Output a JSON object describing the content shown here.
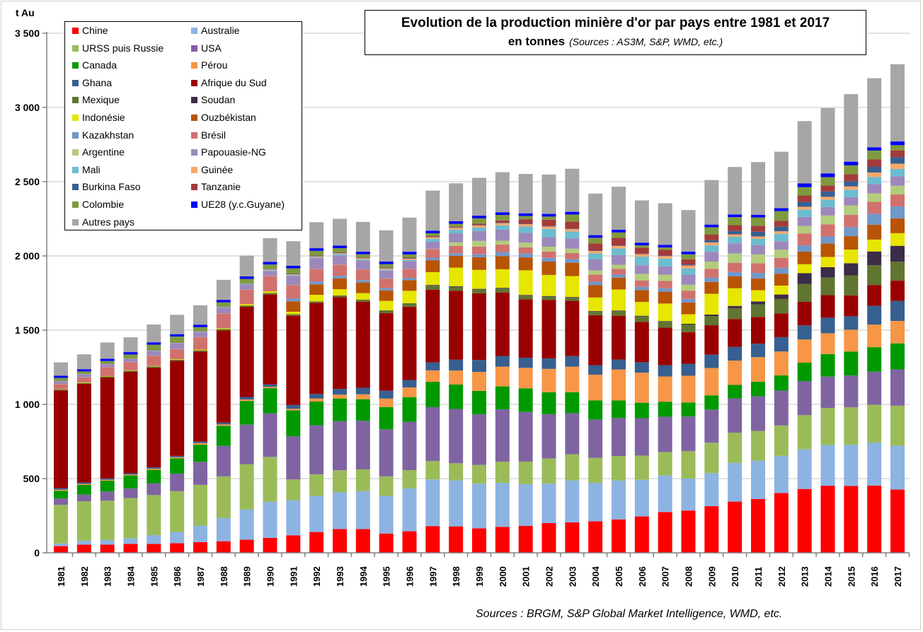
{
  "chart_data": {
    "type": "bar",
    "stacked": true,
    "title": "Evolution de la production minière d'or par pays entre 1981 et 2017",
    "subtitle_bold": "en tonnes",
    "subtitle_sources": "(Sources : AS3M, S&P, WMD, etc.)",
    "ylabel": "t Au",
    "ylim": [
      0,
      3500
    ],
    "yticks": [
      0,
      500,
      1000,
      1500,
      2000,
      2500,
      3000,
      3500
    ],
    "ytick_labels": [
      "0",
      "500",
      "1 000",
      "1 500",
      "2 000",
      "2 500",
      "3 000",
      "3 500"
    ],
    "grid": true,
    "legend_position": "top-left",
    "categories": [
      "1981",
      "1982",
      "1983",
      "1984",
      "1985",
      "1986",
      "1987",
      "1988",
      "1989",
      "1990",
      "1991",
      "1992",
      "1993",
      "1994",
      "1995",
      "1996",
      "1997",
      "1998",
      "1999",
      "2000",
      "2001",
      "2002",
      "2003",
      "2004",
      "2005",
      "2006",
      "2007",
      "2008",
      "2009",
      "2010",
      "2011",
      "2012",
      "2013",
      "2014",
      "2015",
      "2016",
      "2017"
    ],
    "series": [
      {
        "name": "Chine",
        "color": "#ff0000",
        "values": [
          45,
          55,
          55,
          60,
          60,
          65,
          72,
          78,
          88,
          100,
          118,
          140,
          160,
          160,
          130,
          145,
          180,
          178,
          165,
          175,
          182,
          200,
          205,
          212,
          225,
          245,
          275,
          285,
          314,
          345,
          362,
          403,
          430,
          452,
          450,
          453,
          426
        ]
      },
      {
        "name": "Australie",
        "color": "#8db3e2",
        "values": [
          18,
          27,
          31,
          39,
          59,
          75,
          111,
          157,
          204,
          244,
          236,
          243,
          247,
          256,
          253,
          289,
          314,
          310,
          301,
          296,
          280,
          266,
          283,
          259,
          262,
          247,
          246,
          215,
          223,
          261,
          259,
          250,
          267,
          274,
          278,
          290,
          295
        ]
      },
      {
        "name": "URSS puis Russie",
        "color": "#9bbb59",
        "values": [
          260,
          265,
          265,
          270,
          270,
          275,
          275,
          280,
          305,
          302,
          140,
          146,
          149,
          146,
          132,
          123,
          125,
          115,
          126,
          143,
          152,
          170,
          176,
          169,
          165,
          163,
          158,
          185,
          205,
          203,
          200,
          205,
          230,
          250,
          252,
          255,
          270
        ]
      },
      {
        "name": "USA",
        "color": "#8064a2",
        "values": [
          43,
          45,
          62,
          65,
          80,
          118,
          155,
          205,
          266,
          294,
          290,
          330,
          331,
          327,
          317,
          326,
          362,
          366,
          341,
          353,
          335,
          298,
          277,
          258,
          256,
          252,
          238,
          233,
          223,
          231,
          234,
          235,
          230,
          211,
          214,
          222,
          245
        ]
      },
      {
        "name": "Canada",
        "color": "#009900",
        "values": [
          52,
          65,
          73,
          87,
          90,
          103,
          116,
          135,
          160,
          169,
          176,
          160,
          153,
          146,
          150,
          166,
          171,
          165,
          158,
          154,
          159,
          148,
          141,
          129,
          119,
          104,
          101,
          95,
          96,
          91,
          97,
          102,
          124,
          152,
          162,
          165,
          175
        ]
      },
      {
        "name": "Pérou",
        "color": "#f79646",
        "values": [
          7,
          7,
          6,
          6,
          8,
          8,
          10,
          10,
          10,
          9,
          10,
          20,
          25,
          33,
          57,
          65,
          77,
          94,
          128,
          133,
          138,
          157,
          172,
          173,
          208,
          203,
          170,
          180,
          184,
          164,
          166,
          161,
          156,
          140,
          147,
          153,
          151
        ]
      },
      {
        "name": "Ghana",
        "color": "#375f8f",
        "values": [
          11,
          10,
          9,
          9,
          9,
          9,
          10,
          12,
          17,
          17,
          26,
          31,
          39,
          44,
          53,
          50,
          54,
          73,
          80,
          72,
          68,
          70,
          71,
          64,
          67,
          70,
          76,
          81,
          90,
          92,
          91,
          97,
          95,
          105,
          91,
          126,
          135
        ]
      },
      {
        "name": "Afrique du Sud",
        "color": "#990000",
        "values": [
          658,
          664,
          680,
          683,
          671,
          640,
          607,
          621,
          607,
          605,
          601,
          614,
          619,
          580,
          522,
          494,
          490,
          464,
          450,
          428,
          394,
          395,
          373,
          337,
          295,
          272,
          253,
          213,
          198,
          188,
          180,
          160,
          160,
          152,
          140,
          140,
          137
        ]
      },
      {
        "name": "Mexique",
        "color": "#5f7530",
        "values": [
          6,
          6,
          7,
          8,
          8,
          8,
          8,
          9,
          9,
          10,
          10,
          10,
          11,
          14,
          20,
          24,
          26,
          26,
          24,
          26,
          24,
          21,
          20,
          22,
          30,
          36,
          39,
          51,
          62,
          73,
          84,
          97,
          120,
          118,
          135,
          133,
          127
        ]
      },
      {
        "name": "Soudan",
        "color": "#3b2c47",
        "values": [
          0,
          0,
          0,
          0,
          0,
          0,
          0,
          0,
          0,
          0,
          0,
          0,
          0,
          0,
          0,
          0,
          5,
          5,
          5,
          5,
          5,
          5,
          5,
          5,
          5,
          5,
          5,
          5,
          10,
          15,
          20,
          30,
          72,
          70,
          82,
          93,
          107
        ]
      },
      {
        "name": "Indonésie",
        "color": "#e6e600",
        "values": [
          2,
          3,
          3,
          3,
          3,
          4,
          5,
          6,
          9,
          11,
          17,
          44,
          42,
          43,
          63,
          83,
          87,
          125,
          128,
          125,
          166,
          142,
          141,
          92,
          142,
          93,
          118,
          64,
          140,
          119,
          76,
          60,
          60,
          69,
          92,
          80,
          85
        ]
      },
      {
        "name": "Ouzbékistan",
        "color": "#b85405",
        "values": [
          0,
          0,
          0,
          0,
          0,
          0,
          0,
          0,
          0,
          0,
          70,
          70,
          72,
          72,
          70,
          72,
          80,
          80,
          85,
          88,
          87,
          90,
          90,
          84,
          80,
          80,
          80,
          80,
          80,
          80,
          80,
          80,
          85,
          90,
          90,
          100,
          100
        ]
      },
      {
        "name": "Kazakhstan",
        "color": "#7098c8",
        "values": [
          0,
          0,
          0,
          0,
          0,
          0,
          0,
          0,
          0,
          0,
          20,
          20,
          18,
          16,
          15,
          15,
          17,
          17,
          20,
          28,
          25,
          25,
          25,
          22,
          20,
          22,
          23,
          24,
          28,
          30,
          37,
          40,
          42,
          48,
          61,
          74,
          80
        ]
      },
      {
        "name": "Brésil",
        "color": "#d0716e",
        "values": [
          35,
          35,
          59,
          55,
          70,
          67,
          83,
          100,
          97,
          102,
          90,
          85,
          75,
          72,
          65,
          60,
          58,
          50,
          52,
          50,
          43,
          42,
          40,
          48,
          38,
          43,
          49,
          55,
          60,
          62,
          65,
          67,
          80,
          81,
          83,
          80,
          81
        ]
      },
      {
        "name": "Argentine",
        "color": "#b3cc7c",
        "values": [
          1,
          1,
          1,
          1,
          1,
          1,
          1,
          1,
          1,
          1,
          1,
          1,
          1,
          1,
          1,
          1,
          2,
          23,
          38,
          26,
          31,
          33,
          30,
          28,
          28,
          44,
          42,
          40,
          49,
          63,
          59,
          55,
          50,
          60,
          63,
          57,
          58
        ]
      },
      {
        "name": "Papouasie-NG",
        "color": "#9d88bb",
        "values": [
          17,
          18,
          18,
          19,
          31,
          39,
          34,
          37,
          34,
          34,
          61,
          71,
          61,
          60,
          53,
          52,
          49,
          61,
          66,
          75,
          67,
          64,
          69,
          76,
          66,
          58,
          57,
          68,
          66,
          68,
          63,
          57,
          62,
          57,
          56,
          62,
          64
        ]
      },
      {
        "name": "Mali",
        "color": "#6bbccf",
        "values": [
          1,
          1,
          1,
          1,
          1,
          1,
          2,
          3,
          4,
          5,
          5,
          6,
          9,
          7,
          7,
          8,
          18,
          25,
          24,
          29,
          42,
          56,
          47,
          39,
          44,
          58,
          52,
          42,
          43,
          44,
          43,
          50,
          50,
          50,
          50,
          49,
          50
        ]
      },
      {
        "name": "Guinée",
        "color": "#f9a86a",
        "values": [
          1,
          1,
          1,
          1,
          1,
          1,
          1,
          1,
          1,
          5,
          5,
          6,
          6,
          7,
          8,
          8,
          10,
          12,
          14,
          15,
          16,
          16,
          16,
          16,
          17,
          17,
          17,
          19,
          20,
          16,
          15,
          17,
          18,
          19,
          22,
          30,
          35
        ]
      },
      {
        "name": "Burkina Faso",
        "color": "#366092",
        "values": [
          2,
          2,
          2,
          2,
          2,
          2,
          2,
          2,
          2,
          3,
          3,
          3,
          3,
          3,
          3,
          3,
          3,
          3,
          3,
          3,
          3,
          3,
          3,
          3,
          3,
          3,
          3,
          6,
          14,
          23,
          32,
          30,
          33,
          36,
          36,
          38,
          45
        ]
      },
      {
        "name": "Tanzanie",
        "color": "#a33b3a",
        "values": [
          1,
          1,
          1,
          1,
          1,
          1,
          1,
          1,
          1,
          2,
          2,
          2,
          3,
          3,
          3,
          4,
          5,
          5,
          10,
          15,
          30,
          43,
          48,
          48,
          52,
          40,
          40,
          36,
          40,
          39,
          40,
          40,
          43,
          40,
          47,
          50,
          45
        ]
      },
      {
        "name": "Colombie",
        "color": "#7f9a3e",
        "values": [
          18,
          16,
          18,
          26,
          37,
          40,
          27,
          29,
          30,
          29,
          35,
          32,
          28,
          21,
          22,
          22,
          19,
          19,
          35,
          37,
          22,
          21,
          47,
          38,
          36,
          16,
          15,
          34,
          48,
          54,
          56,
          66,
          56,
          57,
          59,
          60,
          35
        ]
      },
      {
        "name": "UE28 (y.c.Guyane)",
        "color": "#0000ff",
        "values": [
          15,
          15,
          15,
          16,
          16,
          16,
          17,
          17,
          17,
          18,
          18,
          18,
          18,
          18,
          18,
          18,
          18,
          18,
          18,
          18,
          18,
          18,
          18,
          18,
          18,
          18,
          18,
          18,
          18,
          18,
          18,
          20,
          25,
          25,
          25,
          22,
          25
        ]
      },
      {
        "name": "Autres pays",
        "color": "#a6a6a6",
        "values": [
          90,
          100,
          110,
          100,
          120,
          130,
          130,
          135,
          140,
          160,
          165,
          175,
          180,
          200,
          210,
          230,
          270,
          255,
          255,
          270,
          265,
          265,
          290,
          280,
          290,
          285,
          280,
          280,
          300,
          320,
          355,
          380,
          420,
          440,
          455,
          465,
          520
        ]
      }
    ],
    "footer": "Sources : BRGM, S&P Global Market Intelligence, WMD, etc."
  }
}
